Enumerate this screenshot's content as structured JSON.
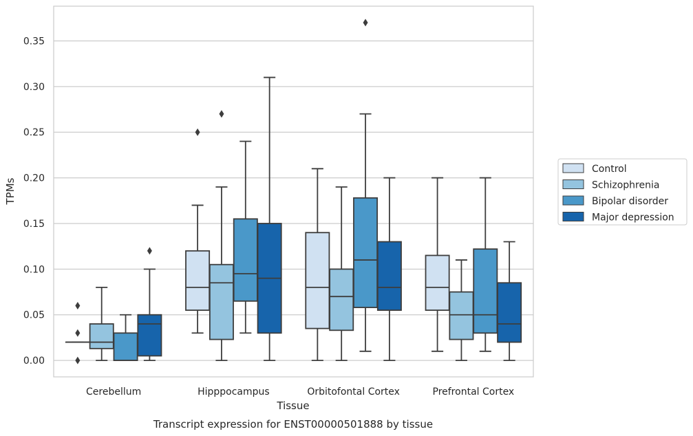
{
  "caption": "Transcript expression for ENST00000501888 by tissue",
  "chart_data": {
    "type": "box",
    "title": "",
    "xlabel": "Tissue",
    "ylabel": "TPMs",
    "ylim": [
      -0.018,
      0.388
    ],
    "yticks": [
      "0.00",
      "0.05",
      "0.10",
      "0.15",
      "0.20",
      "0.25",
      "0.30",
      "0.35"
    ],
    "grid": "horizontal",
    "legend_position": "right",
    "categories": [
      "Cerebellum",
      "Hipppocampus",
      "Orbitofontal Cortex",
      "Prefrontal Cortex"
    ],
    "series": [
      {
        "name": "Control",
        "color": "#d0e1f2",
        "boxes": [
          {
            "whislo": 0.02,
            "q1": 0.02,
            "med": 0.02,
            "q3": 0.02,
            "whishi": 0.02,
            "fliers": [
              0.06,
              0.03,
              0.0
            ]
          },
          {
            "whislo": 0.03,
            "q1": 0.055,
            "med": 0.08,
            "q3": 0.12,
            "whishi": 0.17,
            "fliers": [
              0.25
            ]
          },
          {
            "whislo": 0.0,
            "q1": 0.035,
            "med": 0.08,
            "q3": 0.14,
            "whishi": 0.21,
            "fliers": []
          },
          {
            "whislo": 0.01,
            "q1": 0.055,
            "med": 0.08,
            "q3": 0.115,
            "whishi": 0.2,
            "fliers": []
          }
        ]
      },
      {
        "name": "Schizophrenia",
        "color": "#94c4df",
        "boxes": [
          {
            "whislo": 0.0,
            "q1": 0.013,
            "med": 0.02,
            "q3": 0.04,
            "whishi": 0.08,
            "fliers": []
          },
          {
            "whislo": 0.0,
            "q1": 0.023,
            "med": 0.085,
            "q3": 0.105,
            "whishi": 0.19,
            "fliers": [
              0.27
            ]
          },
          {
            "whislo": 0.0,
            "q1": 0.033,
            "med": 0.07,
            "q3": 0.1,
            "whishi": 0.19,
            "fliers": []
          },
          {
            "whislo": 0.0,
            "q1": 0.023,
            "med": 0.05,
            "q3": 0.075,
            "whishi": 0.11,
            "fliers": []
          }
        ]
      },
      {
        "name": "Bipolar disorder",
        "color": "#4a98c9",
        "boxes": [
          {
            "whislo": 0.0,
            "q1": 0.0,
            "med": 0.0,
            "q3": 0.03,
            "whishi": 0.05,
            "fliers": []
          },
          {
            "whislo": 0.03,
            "q1": 0.065,
            "med": 0.095,
            "q3": 0.155,
            "whishi": 0.24,
            "fliers": []
          },
          {
            "whislo": 0.01,
            "q1": 0.058,
            "med": 0.11,
            "q3": 0.178,
            "whishi": 0.27,
            "fliers": [
              0.37
            ]
          },
          {
            "whislo": 0.01,
            "q1": 0.03,
            "med": 0.05,
            "q3": 0.122,
            "whishi": 0.2,
            "fliers": []
          }
        ]
      },
      {
        "name": "Major depression",
        "color": "#1764ab",
        "boxes": [
          {
            "whislo": 0.0,
            "q1": 0.005,
            "med": 0.04,
            "q3": 0.05,
            "whishi": 0.1,
            "fliers": [
              0.12
            ]
          },
          {
            "whislo": 0.0,
            "q1": 0.03,
            "med": 0.09,
            "q3": 0.15,
            "whishi": 0.31,
            "fliers": []
          },
          {
            "whislo": 0.0,
            "q1": 0.055,
            "med": 0.08,
            "q3": 0.13,
            "whishi": 0.2,
            "fliers": []
          },
          {
            "whislo": 0.0,
            "q1": 0.02,
            "med": 0.04,
            "q3": 0.085,
            "whishi": 0.13,
            "fliers": []
          }
        ]
      }
    ]
  }
}
